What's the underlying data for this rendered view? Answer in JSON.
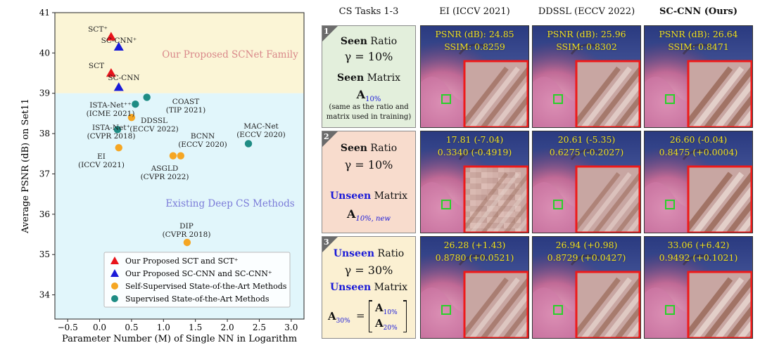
{
  "chart_data": {
    "type": "scatter",
    "xlabel": "Parameter Number (M) of Single NN in Logarithm",
    "ylabel": "Average PSNR (dB) on Set11",
    "xlim": [
      -0.7,
      3.2
    ],
    "ylim": [
      33.4,
      41.0
    ],
    "xticks": [
      "−0.5",
      "0.0",
      "0.5",
      "1.0",
      "1.5",
      "2.0",
      "2.5",
      "3.0"
    ],
    "xtick_values": [
      -0.5,
      0.0,
      0.5,
      1.0,
      1.5,
      2.0,
      2.5,
      3.0
    ],
    "yticks": [
      "34",
      "35",
      "36",
      "37",
      "38",
      "39",
      "40",
      "41"
    ],
    "ytick_values": [
      34,
      35,
      36,
      37,
      38,
      39,
      40,
      41
    ],
    "region_split_y": 39.0,
    "regions": [
      {
        "label": "Our Proposed SCNet Family",
        "color": "#fbf5d6",
        "label_color": "#d9888a"
      },
      {
        "label": "Existing Deep CS Methods",
        "color": "#e1f6fb",
        "label_color": "#7a7ad8"
      }
    ],
    "series": [
      {
        "name": "Our Proposed SCT and SCT⁺",
        "marker": "triangle",
        "color": "#e8141b",
        "points": [
          {
            "x": 0.18,
            "y": 40.4,
            "label": "SCT⁺"
          },
          {
            "x": 0.18,
            "y": 39.5,
            "label": "SCT"
          }
        ]
      },
      {
        "name": "Our Proposed SC-CNN and SC-CNN⁺",
        "marker": "triangle",
        "color": "#1a1ad8",
        "points": [
          {
            "x": 0.3,
            "y": 40.15,
            "label": "SC-CNN⁺"
          },
          {
            "x": 0.3,
            "y": 39.15,
            "label": "SC-CNN"
          }
        ]
      },
      {
        "name": "Self-Supervised State-of-the-Art Methods",
        "marker": "circle",
        "color": "#f5a623",
        "points": [
          {
            "x": 0.3,
            "y": 37.65,
            "label": "EI"
          },
          {
            "x": 0.5,
            "y": 38.4,
            "label": "DDSSL"
          },
          {
            "x": 1.15,
            "y": 37.45,
            "label": "ASGLD"
          },
          {
            "x": 1.27,
            "y": 37.45,
            "label": "BCNN"
          },
          {
            "x": 1.37,
            "y": 35.3,
            "label": "DIP"
          }
        ]
      },
      {
        "name": "Supervised State-of-the-Art Methods",
        "marker": "circle",
        "color": "#1e8c84",
        "points": [
          {
            "x": 0.28,
            "y": 38.1,
            "label": "ISTA-Net⁺"
          },
          {
            "x": 0.56,
            "y": 38.73,
            "label": "ISTA-Net⁺⁺"
          },
          {
            "x": 0.74,
            "y": 38.9,
            "label": "COAST"
          },
          {
            "x": 2.33,
            "y": 37.75,
            "label": "MAC-Net"
          }
        ]
      }
    ],
    "annotations": [
      {
        "lines": [
          "SCT⁺"
        ]
      },
      {
        "lines": [
          "SC-CNN⁺"
        ]
      },
      {
        "lines": [
          "SCT"
        ]
      },
      {
        "lines": [
          "SC-CNN"
        ]
      },
      {
        "lines": [
          "COAST",
          "(TIP 2021)"
        ]
      },
      {
        "lines": [
          "ISTA-Net⁺⁺",
          "(ICME 2021)"
        ]
      },
      {
        "lines": [
          "DDSSL",
          "(ECCV 2022)"
        ]
      },
      {
        "lines": [
          "ISTA-Net⁺",
          "(CVPR 2018)"
        ]
      },
      {
        "lines": [
          "MAC-Net",
          "(ECCV 2020)"
        ]
      },
      {
        "lines": [
          "BCNN",
          "(ECCV 2020)"
        ]
      },
      {
        "lines": [
          "EI",
          "(ICCV 2021)"
        ]
      },
      {
        "lines": [
          "ASGLD",
          "(CVPR 2022)"
        ]
      },
      {
        "lines": [
          "DIP",
          "(CVPR 2018)"
        ]
      }
    ],
    "legend_position": "bottom-right"
  },
  "comparison": {
    "headers": [
      "CS Tasks 1-3",
      "EI (ICCV 2021)",
      "DDSSL (ECCV 2022)",
      "SC-CNN (Ours)"
    ],
    "tasks": [
      {
        "num": "1",
        "ratio_kw": "Seen",
        "ratio_word": "Ratio",
        "gamma": "γ = 10%",
        "matrix_kw": "Seen",
        "matrix_word": "Matrix",
        "matrix_sym": "A",
        "matrix_sub": "10%",
        "note1": "(same as the ratio and",
        "note2": "matrix used in training)"
      },
      {
        "num": "2",
        "ratio_kw": "Seen",
        "ratio_word": "Ratio",
        "gamma": "γ = 10%",
        "matrix_kw": "Unseen",
        "matrix_word": "Matrix",
        "matrix_sym": "A",
        "matrix_sub": "10%, new"
      },
      {
        "num": "3",
        "ratio_kw": "Unseen",
        "ratio_word": "Ratio",
        "gamma": "γ = 30%",
        "matrix_kw": "Unseen",
        "matrix_word": "Matrix",
        "matrix_sym": "A",
        "matrix_sub": "30%",
        "eq": "=",
        "block1": "A",
        "block1_sub": "10%",
        "block2": "A",
        "block2_sub": "20%"
      }
    ],
    "metrics": [
      [
        "PSNR (dB): 24.85",
        "SSIM: 0.8259",
        "PSNR (dB): 25.96",
        "SSIM: 0.8302",
        "PSNR (dB): 26.64",
        "SSIM: 0.8471"
      ],
      [
        "17.81 (-7.04)",
        "0.3340 (-0.4919)",
        "20.61 (-5.35)",
        "0.6275 (-0.2027)",
        "26.60 (-0.04)",
        "0.8475 (+0.0004)"
      ],
      [
        "26.28 (+1.43)",
        "0.8780 (+0.0521)",
        "26.94 (+0.98)",
        "0.8729 (+0.0427)",
        "33.06 (+6.42)",
        "0.9492 (+0.1021)"
      ]
    ],
    "task_colors": [
      "#e3efdc",
      "#f8dccd",
      "#fbf0d2"
    ],
    "accent_blue": "#1a1ad8",
    "metric_color": "#f0e020"
  }
}
